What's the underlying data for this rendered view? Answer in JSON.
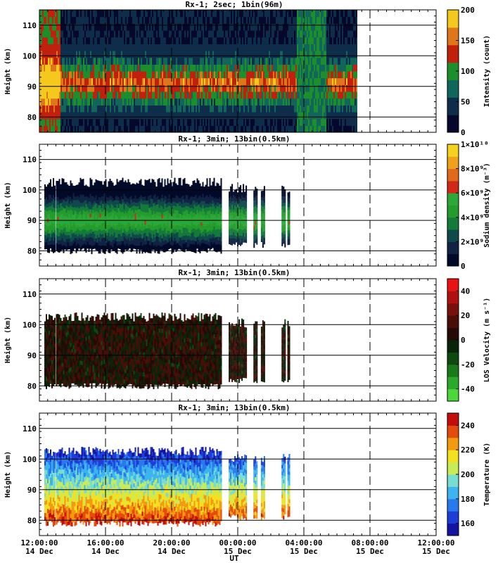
{
  "chart_data": [
    {
      "type": "heatmap",
      "title": "Rx-1;  2sec; 1bin(96m)",
      "ylabel": "Height (km)",
      "colorbar_label": "Intensity (count)",
      "colorbar_ticks": [
        "0",
        "50",
        "100",
        "150",
        "200"
      ],
      "clim": [
        0,
        200
      ],
      "ylim": [
        75,
        115
      ],
      "yticks": [
        "80",
        "90",
        "100",
        "110"
      ],
      "colors": [
        "#05082a",
        "#0d2d4a",
        "#11655a",
        "#1a8f2c",
        "#c0200c",
        "#e0761a",
        "#f4c81c"
      ],
      "layer_top_km": 104,
      "layer_bottom_km": 79,
      "layer_peak_km": 91
    },
    {
      "type": "heatmap",
      "title": "Rx-1; 3min; 13bin(0.5km)",
      "ylabel": "Height (km)",
      "colorbar_label": "Sodium density (m⁻³)",
      "colorbar_ticks": [
        "0",
        "2×10⁹",
        "4×10⁹",
        "6×10⁹",
        "8×10⁹",
        "1×10¹⁰"
      ],
      "clim": [
        0,
        10000000000
      ],
      "ylim": [
        75,
        115
      ],
      "yticks": [
        "80",
        "90",
        "100",
        "110"
      ],
      "colors": [
        "#000a28",
        "#112244",
        "#0e4a4a",
        "#137a3a",
        "#249c2c",
        "#2ca83a",
        "#d2281a",
        "#e06a1a",
        "#f0a01c",
        "#f4d21e"
      ],
      "layer_top_km": 104,
      "layer_bottom_km": 79,
      "layer_peak_km": 90
    },
    {
      "type": "heatmap",
      "title": "Rx-1; 3min; 13bin(0.5km)",
      "ylabel": "Height (km)",
      "colorbar_label": "LOS Velocity (m s⁻¹)",
      "colorbar_ticks": [
        "-40",
        "-20",
        "0",
        "20",
        "40"
      ],
      "clim": [
        -50,
        50
      ],
      "ylim": [
        75,
        115
      ],
      "yticks": [
        "80",
        "90",
        "100",
        "110"
      ],
      "colors": [
        "#4cd83a",
        "#2ca82a",
        "#1a7a1a",
        "#0e4a10",
        "#0a240a",
        "#240a06",
        "#4a0e08",
        "#7a100c",
        "#b01010",
        "#e81414"
      ],
      "layer_top_km": 104,
      "layer_bottom_km": 79
    },
    {
      "type": "heatmap",
      "title": "Rx-1; 3min; 13bin(0.5km)",
      "ylabel": "Height (km)",
      "colorbar_label": "Temperature (K)",
      "colorbar_ticks": [
        "160",
        "180",
        "200",
        "220",
        "240"
      ],
      "clim": [
        150,
        250
      ],
      "ylim": [
        75,
        115
      ],
      "yticks": [
        "80",
        "90",
        "100",
        "110"
      ],
      "colors": [
        "#1414a0",
        "#1e3cd8",
        "#2878ee",
        "#3cb4ee",
        "#78dcd0",
        "#c8ec58",
        "#f4e020",
        "#f49a10",
        "#e44c0c",
        "#c40c0c"
      ],
      "layer_top_km": 104,
      "layer_bottom_km": 78
    }
  ],
  "x_axis": {
    "label": "UT",
    "range_hours": [
      0,
      24
    ],
    "ticks": [
      {
        "time": "12:00:00",
        "date": "14 Dec"
      },
      {
        "time": "16:00:00",
        "date": "14 Dec"
      },
      {
        "time": "20:00:00",
        "date": "14 Dec"
      },
      {
        "time": "00:00:00",
        "date": "15 Dec"
      },
      {
        "time": "04:00:00",
        "date": "15 Dec"
      },
      {
        "time": "08:00:00",
        "date": "15 Dec"
      },
      {
        "time": "12:00:00",
        "date": "15 Dec"
      }
    ]
  },
  "data_segments_hours": [
    [
      0.3,
      0.9
    ],
    [
      1.0,
      11.0
    ],
    [
      11.45,
      12.5
    ],
    [
      12.95,
      13.15
    ],
    [
      13.4,
      13.6
    ],
    [
      14.65,
      14.85
    ],
    [
      15.0,
      15.15
    ]
  ],
  "intensity_segment_hours": [
    0.0,
    19.2
  ]
}
